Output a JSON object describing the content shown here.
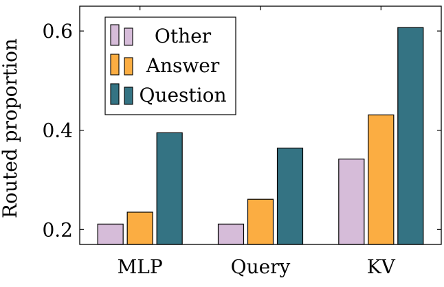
{
  "chart_data": {
    "type": "bar",
    "categories": [
      "MLP",
      "Query",
      "KV"
    ],
    "series": [
      {
        "name": "Other",
        "values": [
          0.211,
          0.211,
          0.342
        ],
        "color": "#d6bcd9"
      },
      {
        "name": "Answer",
        "values": [
          0.235,
          0.261,
          0.431
        ],
        "color": "#fbad42"
      },
      {
        "name": "Question",
        "values": [
          0.395,
          0.364,
          0.607
        ],
        "color": "#347383"
      }
    ],
    "xlabel": "",
    "ylabel": "Routed proportion",
    "ylim": [
      0.17,
      0.65
    ],
    "yticks": [
      0.2,
      0.4,
      0.6
    ],
    "ytick_labels": [
      "0.2",
      "0.4",
      "0.6"
    ],
    "legend_position": "top-left",
    "grid": false
  }
}
